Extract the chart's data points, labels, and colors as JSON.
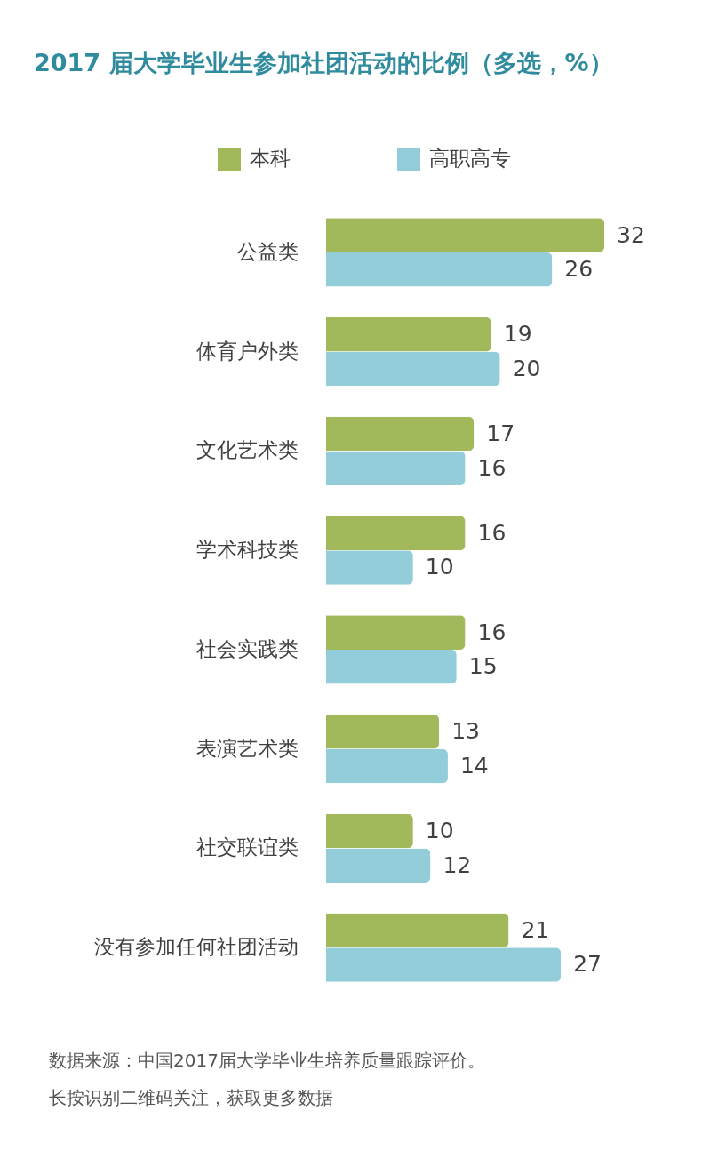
{
  "chart_data": {
    "type": "bar",
    "orientation": "horizontal",
    "title": "2017 届大学毕业生参加社团活动的比例（多选，%）",
    "categories": [
      "公益类",
      "体育户外类",
      "文化艺术类",
      "学术科技类",
      "社会实践类",
      "表演艺术类",
      "社交联谊类",
      "没有参加任何社团活动"
    ],
    "series": [
      {
        "name": "本科",
        "color": "#a2b95b",
        "values": [
          32,
          19,
          17,
          16,
          16,
          13,
          10,
          21
        ]
      },
      {
        "name": "高职高专",
        "color": "#92cdd9",
        "values": [
          26,
          20,
          16,
          10,
          15,
          14,
          12,
          27
        ]
      }
    ],
    "data_labels": true,
    "legend": "top",
    "tick_labels": "y",
    "annotations": [
      "数据来源：中国2017届大学毕业生培养质量跟踪评价。",
      "长按识别二维码关注，获取更多数据"
    ]
  }
}
